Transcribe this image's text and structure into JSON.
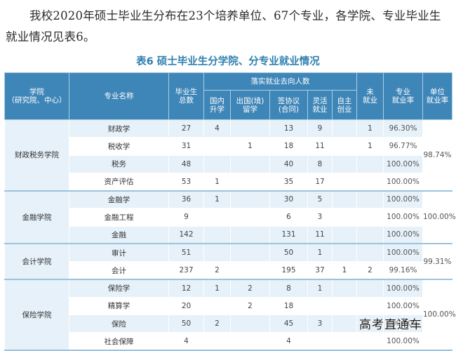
{
  "intro": "我校2020年硕士毕业生分布在23个培养单位、67个专业，各学院、专业毕业生就业情况见表6。",
  "caption": "表6  硕士毕业生分学院、分专业就业情况",
  "headers": {
    "college_l1": "学院",
    "college_l2": "（研究院、中心）",
    "major": "专业名称",
    "total_l1": "毕业生",
    "total_l2": "总数",
    "placed": "落实就业去向人数",
    "domestic_l1": "国内",
    "domestic_l2": "升学",
    "abroad_l1": "出国(境)",
    "abroad_l2": "留学",
    "signed_l1": "签协议",
    "signed_l2": "(合同)",
    "flexible_l1": "灵活",
    "flexible_l2": "就业",
    "self_l1": "自主",
    "self_l2": "创业",
    "unemployed_l1": "未",
    "unemployed_l2": "就业",
    "rate_l1": "专业",
    "rate_l2": "就业率",
    "urate_l1": "单位",
    "urate_l2": "就业率"
  },
  "groups": [
    {
      "college": "财政税务学院",
      "unit_rate": "98.74%",
      "rows": [
        {
          "major": "财政学",
          "total": "27",
          "domestic": "4",
          "abroad": "",
          "signed": "13",
          "flexible": "9",
          "self": "",
          "unemployed": "1",
          "rate": "96.30%"
        },
        {
          "major": "税收学",
          "total": "31",
          "domestic": "",
          "abroad": "1",
          "signed": "18",
          "flexible": "11",
          "self": "",
          "unemployed": "1",
          "rate": "96.77%"
        },
        {
          "major": "税务",
          "total": "48",
          "domestic": "",
          "abroad": "",
          "signed": "40",
          "flexible": "8",
          "self": "",
          "unemployed": "",
          "rate": "100.00%"
        },
        {
          "major": "资产评估",
          "total": "53",
          "domestic": "1",
          "abroad": "",
          "signed": "35",
          "flexible": "17",
          "self": "",
          "unemployed": "",
          "rate": "100.00%"
        }
      ]
    },
    {
      "college": "金融学院",
      "unit_rate": "100.00%",
      "rows": [
        {
          "major": "金融学",
          "total": "36",
          "domestic": "1",
          "abroad": "",
          "signed": "30",
          "flexible": "5",
          "self": "",
          "unemployed": "",
          "rate": "100.00%"
        },
        {
          "major": "金融工程",
          "total": "9",
          "domestic": "",
          "abroad": "",
          "signed": "6",
          "flexible": "3",
          "self": "",
          "unemployed": "",
          "rate": "100.00%"
        },
        {
          "major": "金融",
          "total": "142",
          "domestic": "",
          "abroad": "",
          "signed": "131",
          "flexible": "11",
          "self": "",
          "unemployed": "",
          "rate": "100.00%"
        }
      ]
    },
    {
      "college": "会计学院",
      "unit_rate": "99.31%",
      "rows": [
        {
          "major": "审计",
          "total": "51",
          "domestic": "",
          "abroad": "",
          "signed": "50",
          "flexible": "1",
          "self": "",
          "unemployed": "",
          "rate": "100.00%"
        },
        {
          "major": "会计",
          "total": "237",
          "domestic": "2",
          "abroad": "",
          "signed": "195",
          "flexible": "37",
          "self": "1",
          "unemployed": "2",
          "rate": "99.16%"
        }
      ]
    },
    {
      "college": "保险学院",
      "unit_rate": "100.00%",
      "rows": [
        {
          "major": "保险学",
          "total": "12",
          "domestic": "1",
          "abroad": "2",
          "signed": "8",
          "flexible": "1",
          "self": "",
          "unemployed": "",
          "rate": "100.00%"
        },
        {
          "major": "精算学",
          "total": "20",
          "domestic": "",
          "abroad": "2",
          "signed": "18",
          "flexible": "",
          "self": "",
          "unemployed": "",
          "rate": "100.00%"
        },
        {
          "major": "保险",
          "total": "50",
          "domestic": "2",
          "abroad": "",
          "signed": "45",
          "flexible": "3",
          "self": "",
          "unemployed": "",
          "rate": "100.00%"
        },
        {
          "major": "社会保障",
          "total": "4",
          "domestic": "",
          "abroad": "",
          "signed": "4",
          "flexible": "",
          "self": "",
          "unemployed": "",
          "rate": "100.00%"
        }
      ]
    }
  ],
  "watermark": "高考直通车"
}
